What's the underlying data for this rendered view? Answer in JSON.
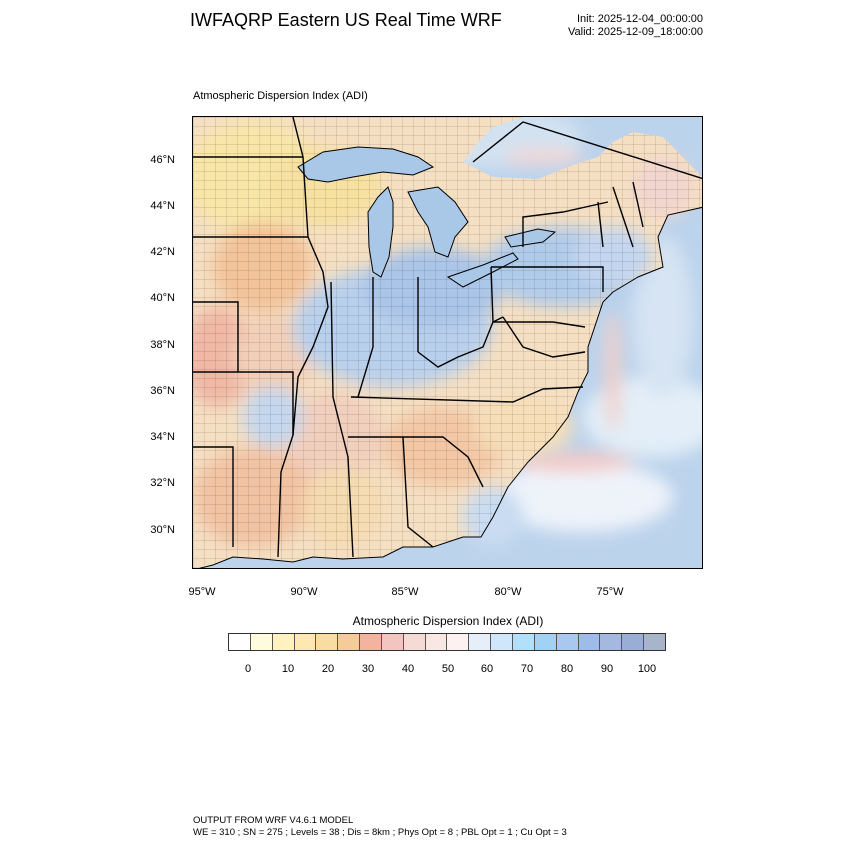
{
  "header": {
    "title": "IWFAQRP Eastern US Real Time WRF",
    "init": "Init: 2025-12-04_00:00:00",
    "valid": "Valid: 2025-12-09_18:00:00"
  },
  "map": {
    "subtitle": "Atmospheric Dispersion Index   (ADI)",
    "lat_labels": [
      "46°N",
      "44°N",
      "42°N",
      "40°N",
      "38°N",
      "36°N",
      "34°N",
      "32°N",
      "30°N"
    ],
    "lon_labels": [
      "95°W",
      "90°W",
      "85°W",
      "80°W",
      "75°W"
    ],
    "colors": {
      "lake_water": "#a9c7e6",
      "ocean_light": "#cfe0f0",
      "low_yellow": "#f7e7a9",
      "mid_orange": "#f3c79b",
      "mid_pink": "#efb6aa",
      "high_blue": "#b9cfea",
      "boundary": "#000000"
    }
  },
  "colorbar": {
    "title": "Atmospheric Dispersion Index  (ADI)",
    "colors": [
      "#ffffff",
      "#fffbdc",
      "#fff2c0",
      "#fde9b0",
      "#f9dca0",
      "#f5cb99",
      "#f4b39f",
      "#f3c5c0",
      "#f6dad4",
      "#f9e7e4",
      "#fbf2f1",
      "#e6eefa",
      "#cfe6fb",
      "#b2e0fa",
      "#a2d2f3",
      "#aac8ef",
      "#9ebbea",
      "#a5b8df",
      "#9aaed5",
      "#a7b4c9"
    ],
    "labels": [
      "0",
      "10",
      "20",
      "30",
      "40",
      "50",
      "60",
      "70",
      "80",
      "90",
      "100"
    ]
  },
  "footer": {
    "line1": "OUTPUT FROM WRF V4.6.1 MODEL",
    "line2": "WE = 310 ; SN = 275 ; Levels = 38 ; Dis = 8km ; Phys Opt = 8 ; PBL Opt = 1 ; Cu Opt = 3"
  }
}
